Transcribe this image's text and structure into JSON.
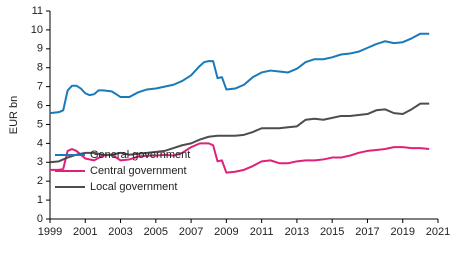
{
  "chart_data": {
    "type": "line",
    "ylabel": "EUR bn",
    "xlim": [
      1999,
      2021
    ],
    "xticks": [
      1999,
      2001,
      2003,
      2005,
      2007,
      2009,
      2011,
      2013,
      2015,
      2017,
      2019,
      2021
    ],
    "ylim": [
      0,
      11
    ],
    "yticks": [
      0,
      1,
      2,
      3,
      4,
      5,
      6,
      7,
      8,
      9,
      10,
      11
    ],
    "grid": false,
    "legend": "lower left",
    "series": [
      {
        "name": "General government",
        "color": "#1a7ab8",
        "x": [
          1999.0,
          1999.5,
          1999.75,
          2000.0,
          2000.25,
          2000.5,
          2000.75,
          2001.0,
          2001.25,
          2001.5,
          2001.75,
          2002.0,
          2002.5,
          2002.75,
          2003.0,
          2003.5,
          2004.0,
          2004.5,
          2005.0,
          2005.5,
          2006.0,
          2006.5,
          2007.0,
          2007.5,
          2007.75,
          2008.0,
          2008.25,
          2008.5,
          2008.75,
          2009.0,
          2009.5,
          2010.0,
          2010.5,
          2011.0,
          2011.5,
          2012.0,
          2012.5,
          2013.0,
          2013.5,
          2014.0,
          2014.5,
          2015.0,
          2015.5,
          2016.0,
          2016.5,
          2017.0,
          2017.5,
          2018.0,
          2018.5,
          2019.0,
          2019.5,
          2020.0,
          2020.5
        ],
        "values": [
          5.6,
          5.65,
          5.75,
          6.8,
          7.05,
          7.05,
          6.9,
          6.65,
          6.55,
          6.6,
          6.8,
          6.8,
          6.75,
          6.6,
          6.45,
          6.45,
          6.7,
          6.85,
          6.9,
          7.0,
          7.1,
          7.3,
          7.6,
          8.1,
          8.3,
          8.35,
          8.35,
          7.45,
          7.5,
          6.85,
          6.9,
          7.1,
          7.5,
          7.75,
          7.85,
          7.8,
          7.75,
          7.95,
          8.3,
          8.45,
          8.45,
          8.55,
          8.7,
          8.75,
          8.85,
          9.05,
          9.25,
          9.4,
          9.3,
          9.35,
          9.55,
          9.8,
          9.8
        ]
      },
      {
        "name": "Central government",
        "color": "#e0217a",
        "x": [
          1999.0,
          1999.5,
          1999.75,
          2000.0,
          2000.25,
          2000.5,
          2000.75,
          2001.0,
          2001.5,
          2002.0,
          2002.5,
          2003.0,
          2003.5,
          2004.0,
          2004.5,
          2005.0,
          2005.5,
          2006.0,
          2006.5,
          2007.0,
          2007.5,
          2008.0,
          2008.25,
          2008.5,
          2008.75,
          2009.0,
          2009.5,
          2010.0,
          2010.5,
          2011.0,
          2011.5,
          2012.0,
          2012.5,
          2013.0,
          2013.5,
          2014.0,
          2014.5,
          2015.0,
          2015.5,
          2016.0,
          2016.5,
          2017.0,
          2017.5,
          2018.0,
          2018.5,
          2019.0,
          2019.5,
          2020.0,
          2020.5
        ],
        "values": [
          2.6,
          2.6,
          2.65,
          3.6,
          3.7,
          3.6,
          3.4,
          3.2,
          3.1,
          3.35,
          3.4,
          3.1,
          3.15,
          3.3,
          3.35,
          3.35,
          3.4,
          3.35,
          3.5,
          3.8,
          4.0,
          4.0,
          3.9,
          3.05,
          3.1,
          2.45,
          2.5,
          2.6,
          2.8,
          3.05,
          3.1,
          2.95,
          2.95,
          3.05,
          3.1,
          3.1,
          3.15,
          3.25,
          3.25,
          3.35,
          3.5,
          3.6,
          3.65,
          3.7,
          3.8,
          3.8,
          3.75,
          3.75,
          3.7
        ]
      },
      {
        "name": "Local government",
        "color": "#4d4d4d",
        "x": [
          1999.0,
          1999.5,
          2000.0,
          2000.5,
          2001.0,
          2001.5,
          2002.0,
          2002.5,
          2003.0,
          2003.5,
          2004.0,
          2004.5,
          2005.0,
          2005.5,
          2006.0,
          2006.5,
          2007.0,
          2007.5,
          2008.0,
          2008.5,
          2009.0,
          2009.5,
          2010.0,
          2010.5,
          2011.0,
          2011.5,
          2012.0,
          2012.5,
          2013.0,
          2013.5,
          2014.0,
          2014.5,
          2015.0,
          2015.5,
          2016.0,
          2016.5,
          2017.0,
          2017.5,
          2018.0,
          2018.5,
          2019.0,
          2019.5,
          2020.0,
          2020.5
        ],
        "values": [
          3.0,
          3.05,
          3.25,
          3.4,
          3.5,
          3.5,
          3.4,
          3.4,
          3.5,
          3.4,
          3.45,
          3.5,
          3.55,
          3.6,
          3.75,
          3.9,
          4.0,
          4.2,
          4.35,
          4.4,
          4.4,
          4.4,
          4.45,
          4.6,
          4.8,
          4.8,
          4.8,
          4.85,
          4.9,
          5.25,
          5.3,
          5.25,
          5.35,
          5.45,
          5.45,
          5.5,
          5.55,
          5.75,
          5.8,
          5.6,
          5.55,
          5.8,
          6.1,
          6.1
        ]
      }
    ]
  }
}
